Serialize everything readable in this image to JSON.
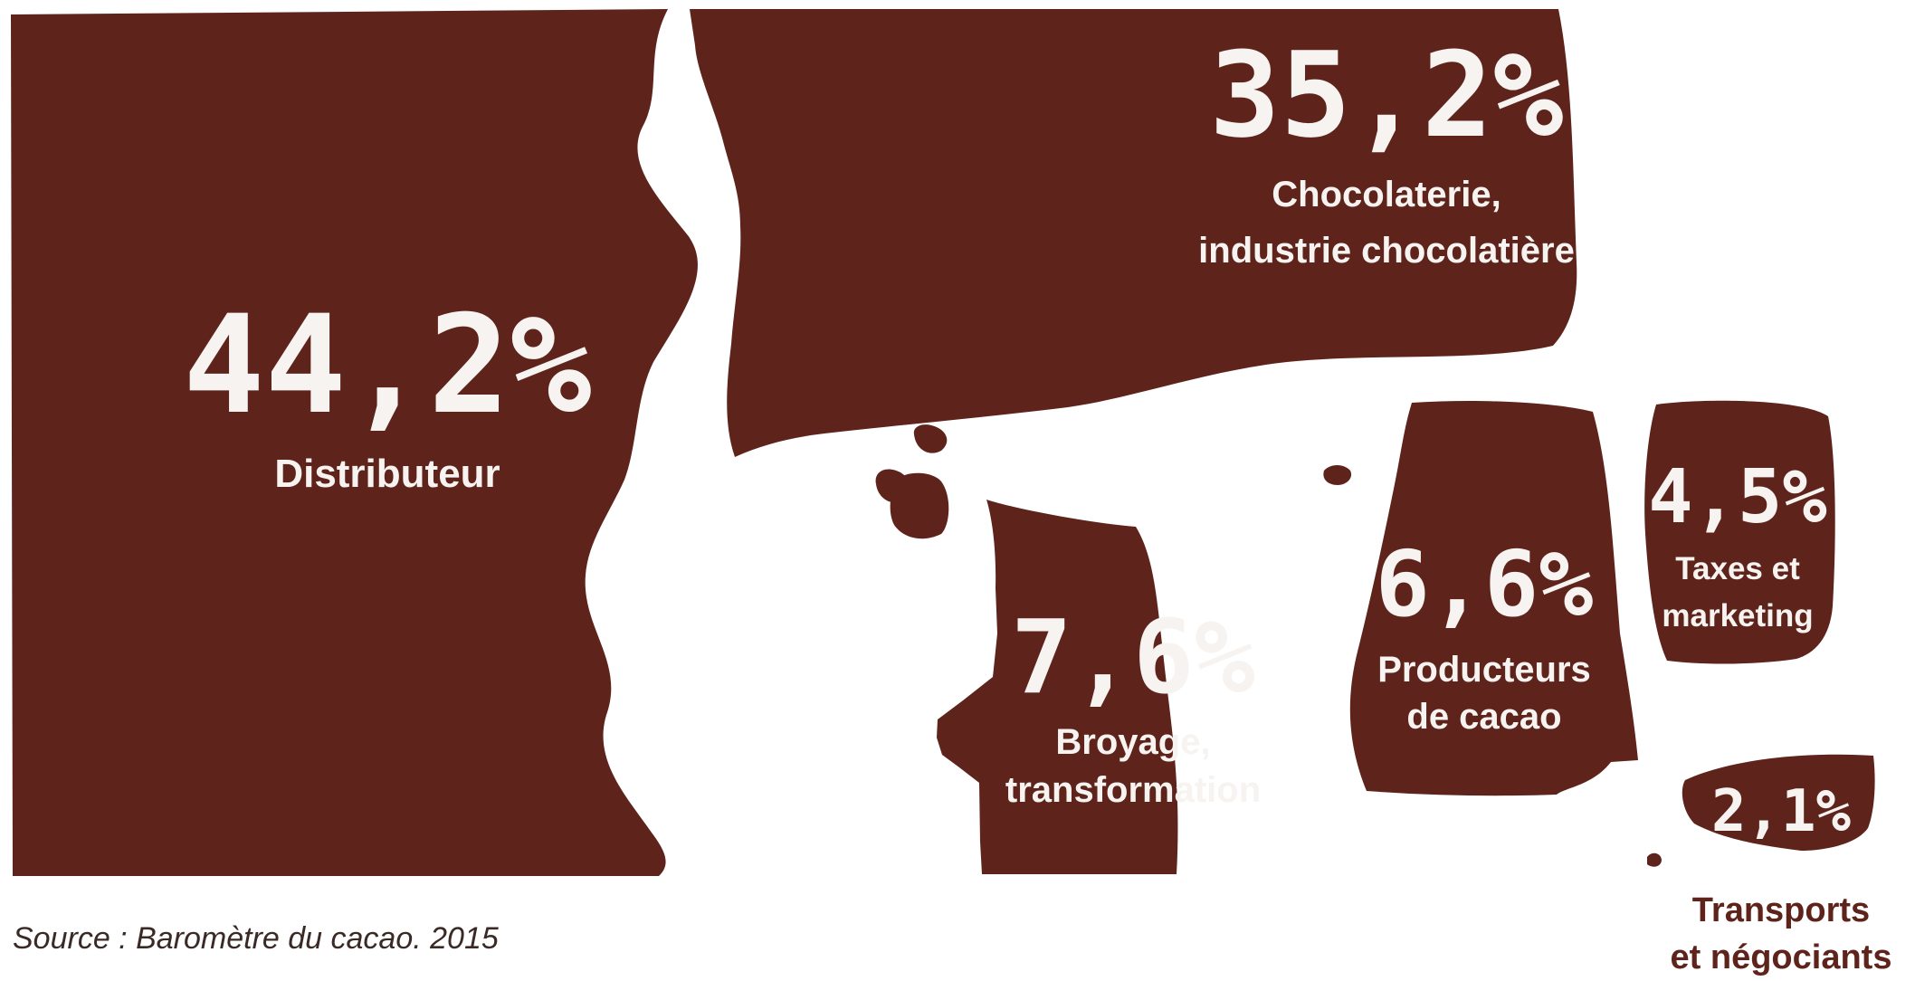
{
  "chart_data": {
    "type": "treemap",
    "colors": {
      "fill": "#5e241c",
      "text": "#f7f3f1",
      "background": "#ffffff"
    },
    "segments": [
      {
        "value": 44.2,
        "value_label": "44,2%",
        "label_lines": [
          "Distributeur"
        ]
      },
      {
        "value": 35.2,
        "value_label": "35,2%",
        "label_lines": [
          "Chocolaterie,",
          "industrie chocolatière"
        ]
      },
      {
        "value": 7.6,
        "value_label": "7,6%",
        "label_lines": [
          "Broyage,",
          "transformation"
        ]
      },
      {
        "value": 6.6,
        "value_label": "6,6%",
        "label_lines": [
          "Producteurs",
          "de cacao"
        ]
      },
      {
        "value": 4.5,
        "value_label": "4,5%",
        "label_lines": [
          "Taxes et",
          "marketing"
        ]
      },
      {
        "value": 2.1,
        "value_label": "2,1%",
        "label_lines": [
          "Transports",
          "et négociants"
        ]
      }
    ],
    "source": "Source : Baromètre du cacao. 2015"
  }
}
